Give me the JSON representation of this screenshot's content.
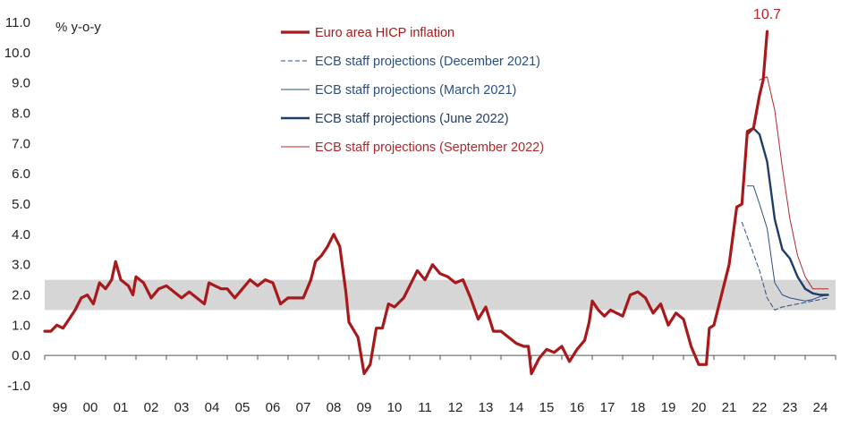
{
  "chart_data": {
    "type": "line",
    "ylabel": "% y-o-y",
    "ylim": [
      -1.0,
      11.0
    ],
    "yticks": [
      "-1.0",
      "0.0",
      "1.0",
      "2.0",
      "3.0",
      "4.0",
      "5.0",
      "6.0",
      "7.0",
      "8.0",
      "9.0",
      "10.0",
      "11.0"
    ],
    "xticks": [
      "99",
      "00",
      "01",
      "02",
      "03",
      "04",
      "05",
      "06",
      "07",
      "08",
      "09",
      "10",
      "11",
      "12",
      "13",
      "14",
      "15",
      "16",
      "17",
      "18",
      "19",
      "20",
      "21",
      "22",
      "23",
      "24"
    ],
    "target_band": [
      1.5,
      2.5
    ],
    "annotation": "10.7",
    "legend_position": "top-center",
    "series": [
      {
        "name": "Euro area HICP inflation",
        "color": "#a8191c",
        "style": "thick",
        "points": [
          [
            1999.0,
            0.8
          ],
          [
            1999.2,
            0.8
          ],
          [
            1999.4,
            1.0
          ],
          [
            1999.6,
            0.9
          ],
          [
            1999.8,
            1.2
          ],
          [
            2000.0,
            1.5
          ],
          [
            2000.2,
            1.9
          ],
          [
            2000.4,
            2.0
          ],
          [
            2000.6,
            1.7
          ],
          [
            2000.8,
            2.4
          ],
          [
            2001.0,
            2.2
          ],
          [
            2001.2,
            2.5
          ],
          [
            2001.33,
            3.1
          ],
          [
            2001.5,
            2.5
          ],
          [
            2001.75,
            2.3
          ],
          [
            2001.9,
            2.0
          ],
          [
            2002.0,
            2.6
          ],
          [
            2002.25,
            2.4
          ],
          [
            2002.5,
            1.9
          ],
          [
            2002.75,
            2.2
          ],
          [
            2003.0,
            2.3
          ],
          [
            2003.25,
            2.1
          ],
          [
            2003.5,
            1.9
          ],
          [
            2003.75,
            2.1
          ],
          [
            2004.0,
            1.9
          ],
          [
            2004.25,
            1.7
          ],
          [
            2004.4,
            2.4
          ],
          [
            2004.6,
            2.3
          ],
          [
            2004.8,
            2.2
          ],
          [
            2005.0,
            2.2
          ],
          [
            2005.25,
            1.9
          ],
          [
            2005.5,
            2.2
          ],
          [
            2005.75,
            2.5
          ],
          [
            2006.0,
            2.3
          ],
          [
            2006.25,
            2.5
          ],
          [
            2006.5,
            2.4
          ],
          [
            2006.75,
            1.7
          ],
          [
            2007.0,
            1.9
          ],
          [
            2007.25,
            1.9
          ],
          [
            2007.5,
            1.9
          ],
          [
            2007.75,
            2.5
          ],
          [
            2007.9,
            3.1
          ],
          [
            2008.1,
            3.3
          ],
          [
            2008.3,
            3.6
          ],
          [
            2008.5,
            4.0
          ],
          [
            2008.7,
            3.6
          ],
          [
            2008.9,
            2.1
          ],
          [
            2009.0,
            1.1
          ],
          [
            2009.3,
            0.6
          ],
          [
            2009.5,
            -0.6
          ],
          [
            2009.7,
            -0.3
          ],
          [
            2009.9,
            0.9
          ],
          [
            2010.1,
            0.9
          ],
          [
            2010.3,
            1.7
          ],
          [
            2010.5,
            1.6
          ],
          [
            2010.8,
            1.9
          ],
          [
            2011.0,
            2.3
          ],
          [
            2011.25,
            2.8
          ],
          [
            2011.5,
            2.5
          ],
          [
            2011.75,
            3.0
          ],
          [
            2012.0,
            2.7
          ],
          [
            2012.25,
            2.6
          ],
          [
            2012.5,
            2.4
          ],
          [
            2012.75,
            2.5
          ],
          [
            2013.0,
            1.9
          ],
          [
            2013.25,
            1.2
          ],
          [
            2013.5,
            1.6
          ],
          [
            2013.75,
            0.8
          ],
          [
            2014.0,
            0.8
          ],
          [
            2014.25,
            0.6
          ],
          [
            2014.5,
            0.4
          ],
          [
            2014.75,
            0.3
          ],
          [
            2014.9,
            0.3
          ],
          [
            2015.0,
            -0.6
          ],
          [
            2015.25,
            -0.1
          ],
          [
            2015.5,
            0.2
          ],
          [
            2015.75,
            0.1
          ],
          [
            2016.0,
            0.3
          ],
          [
            2016.25,
            -0.2
          ],
          [
            2016.5,
            0.2
          ],
          [
            2016.75,
            0.5
          ],
          [
            2016.9,
            1.1
          ],
          [
            2017.0,
            1.8
          ],
          [
            2017.2,
            1.5
          ],
          [
            2017.4,
            1.3
          ],
          [
            2017.6,
            1.5
          ],
          [
            2017.8,
            1.4
          ],
          [
            2018.0,
            1.3
          ],
          [
            2018.25,
            2.0
          ],
          [
            2018.5,
            2.1
          ],
          [
            2018.75,
            1.9
          ],
          [
            2019.0,
            1.4
          ],
          [
            2019.25,
            1.7
          ],
          [
            2019.5,
            1.0
          ],
          [
            2019.75,
            1.4
          ],
          [
            2020.0,
            1.2
          ],
          [
            2020.25,
            0.3
          ],
          [
            2020.5,
            -0.3
          ],
          [
            2020.75,
            -0.3
          ],
          [
            2020.85,
            0.9
          ],
          [
            2021.0,
            1.0
          ],
          [
            2021.25,
            2.0
          ],
          [
            2021.5,
            3.0
          ],
          [
            2021.75,
            4.9
          ],
          [
            2021.92,
            5.0
          ],
          [
            2022.1,
            7.4
          ],
          [
            2022.3,
            7.5
          ],
          [
            2022.5,
            8.6
          ],
          [
            2022.62,
            9.1
          ],
          [
            2022.75,
            10.7
          ]
        ]
      },
      {
        "name": "ECB staff projections (December 2021)",
        "color": "#2b4f82",
        "style": "dashed",
        "points": [
          [
            2021.92,
            4.4
          ],
          [
            2022.25,
            3.5
          ],
          [
            2022.5,
            2.8
          ],
          [
            2022.75,
            1.9
          ],
          [
            2023.0,
            1.5
          ],
          [
            2023.25,
            1.6
          ],
          [
            2023.5,
            1.65
          ],
          [
            2023.75,
            1.7
          ],
          [
            2024.0,
            1.75
          ],
          [
            2024.25,
            1.8
          ],
          [
            2024.5,
            1.85
          ],
          [
            2024.75,
            1.9
          ]
        ]
      },
      {
        "name": "ECB staff projections (March 2021)",
        "color": "#2b4f82",
        "style": "thin",
        "points": [
          [
            2022.1,
            5.6
          ],
          [
            2022.3,
            5.6
          ],
          [
            2022.5,
            5.0
          ],
          [
            2022.75,
            4.2
          ],
          [
            2023.0,
            2.4
          ],
          [
            2023.25,
            2.0
          ],
          [
            2023.5,
            1.9
          ],
          [
            2023.75,
            1.85
          ],
          [
            2024.0,
            1.8
          ],
          [
            2024.25,
            1.85
          ],
          [
            2024.5,
            1.95
          ],
          [
            2024.75,
            2.0
          ]
        ]
      },
      {
        "name": "ECB staff projections (June 2022)",
        "color": "#1f3d68",
        "style": "medium",
        "points": [
          [
            2022.1,
            7.3
          ],
          [
            2022.3,
            7.5
          ],
          [
            2022.5,
            7.3
          ],
          [
            2022.75,
            6.4
          ],
          [
            2023.0,
            4.5
          ],
          [
            2023.25,
            3.5
          ],
          [
            2023.5,
            3.2
          ],
          [
            2023.75,
            2.6
          ],
          [
            2024.0,
            2.2
          ],
          [
            2024.25,
            2.05
          ],
          [
            2024.5,
            2.0
          ],
          [
            2024.75,
            2.0
          ]
        ]
      },
      {
        "name": "ECB staff projections (September 2022)",
        "color": "#b0282b",
        "style": "thin",
        "points": [
          [
            2022.5,
            9.1
          ],
          [
            2022.75,
            9.2
          ],
          [
            2023.0,
            8.1
          ],
          [
            2023.25,
            6.2
          ],
          [
            2023.5,
            4.5
          ],
          [
            2023.75,
            3.3
          ],
          [
            2024.0,
            2.6
          ],
          [
            2024.25,
            2.2
          ],
          [
            2024.5,
            2.2
          ],
          [
            2024.75,
            2.2
          ]
        ]
      }
    ]
  }
}
